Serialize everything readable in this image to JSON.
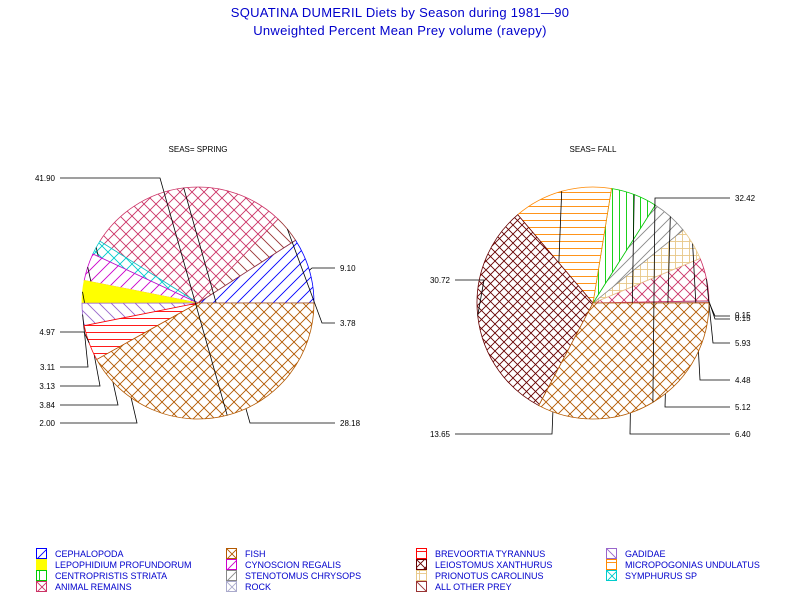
{
  "title": "SQUATINA DUMERIL Diets by Season during 1981—90",
  "subtitle": "Unweighted Percent Mean Prey volume (ravepy)",
  "colors": {
    "CEPHALOPODA": "#0000ff",
    "FISH": "#b35900",
    "BREVOORTIA TYRANNUS": "#ff0000",
    "GADIDAE": "#9966cc",
    "LEPOPHIDIUM PROFUNDORUM": "#ffff00",
    "CYNOSCION REGALIS": "#cc00cc",
    "LEIOSTOMUS XANTHURUS": "#660000",
    "MICROPOGONIAS UNDULATUS": "#ff8800",
    "CENTROPRISTIS STRIATA": "#00cc00",
    "STENOTOMUS CHRYSOPS": "#888888",
    "PRIONOTUS CAROLINUS": "#e8c888",
    "SYMPHURUS SP": "#00cccc",
    "ANIMAL REMAINS": "#cc3366",
    "ROCK": "#aaaacc",
    "ALL OTHER PREY": "#993333"
  },
  "legend": [
    {
      "label": "CEPHALOPODA",
      "icon": "single-hatch-legend-swatch"
    },
    {
      "label": "FISH",
      "icon": "crosshatch-legend-swatch"
    },
    {
      "label": "BREVOORTIA TYRANNUS",
      "icon": "horizontal-hatch-legend-swatch"
    },
    {
      "label": "GADIDAE",
      "icon": "empty-legend-swatch"
    },
    {
      "label": "LEPOPHIDIUM PROFUNDORUM",
      "icon": "solid-legend-swatch"
    },
    {
      "label": "CYNOSCION REGALIS",
      "icon": "single-hatch-legend-swatch"
    },
    {
      "label": "LEIOSTOMUS XANTHURUS",
      "icon": "crosshatch-legend-swatch"
    },
    {
      "label": "MICROPOGONIAS UNDULATUS",
      "icon": "horizontal-hatch-legend-swatch"
    },
    {
      "label": "CENTROPRISTIS STRIATA",
      "icon": "vertical-hatch-legend-swatch"
    },
    {
      "label": "STENOTOMUS CHRYSOPS",
      "icon": "single-hatch-legend-swatch"
    },
    {
      "label": "PRIONOTUS CAROLINUS",
      "icon": "grid-legend-swatch"
    },
    {
      "label": "SYMPHURUS SP",
      "icon": "crosshatch-legend-swatch"
    },
    {
      "label": "ANIMAL REMAINS",
      "icon": "crosshatch-legend-swatch"
    },
    {
      "label": "ROCK",
      "icon": "crosshatch-legend-swatch"
    },
    {
      "label": "ALL OTHER PREY",
      "icon": "single-hatch-legend-swatch"
    }
  ],
  "chart_data": [
    {
      "type": "pie",
      "title": "SEAS= SPRING",
      "slices": [
        {
          "name": "CEPHALOPODA",
          "value": 9.1,
          "label": "9.10"
        },
        {
          "name": "ALL OTHER PREY",
          "value": 3.78,
          "label": "3.78"
        },
        {
          "name": "ANIMAL REMAINS",
          "value": 28.18,
          "label": "28.18"
        },
        {
          "name": "SYMPHURUS SP",
          "value": 2.0,
          "label": "2.00"
        },
        {
          "name": "CYNOSCION REGALIS",
          "value": 3.84,
          "label": "3.84"
        },
        {
          "name": "LEPOPHIDIUM PROFUNDORUM",
          "value": 3.13,
          "label": "3.13"
        },
        {
          "name": "GADIDAE",
          "value": 3.11,
          "label": "3.11"
        },
        {
          "name": "BREVOORTIA TYRANNUS",
          "value": 4.97,
          "label": "4.97"
        },
        {
          "name": "FISH",
          "value": 41.9,
          "label": "41.90"
        }
      ]
    },
    {
      "type": "pie",
      "title": "SEAS= FALL",
      "slices": [
        {
          "name": "BREVOORTIA TYRANNUS",
          "value": 0.15,
          "label": "0.15"
        },
        {
          "name": "ROCK",
          "value": 0.15,
          "label": "0.15"
        },
        {
          "name": "ANIMAL REMAINS",
          "value": 5.93,
          "label": "5.93"
        },
        {
          "name": "PRIONOTUS CAROLINUS",
          "value": 4.48,
          "label": "4.48"
        },
        {
          "name": "STENOTOMUS CHRYSOPS",
          "value": 5.12,
          "label": "5.12"
        },
        {
          "name": "CENTROPRISTIS STRIATA",
          "value": 6.4,
          "label": "6.40"
        },
        {
          "name": "MICROPOGONIAS UNDULATUS",
          "value": 13.65,
          "label": "13.65"
        },
        {
          "name": "LEIOSTOMUS XANTHURUS",
          "value": 30.72,
          "label": "30.72"
        },
        {
          "name": "FISH",
          "value": 32.42,
          "label": "32.42"
        }
      ]
    }
  ]
}
